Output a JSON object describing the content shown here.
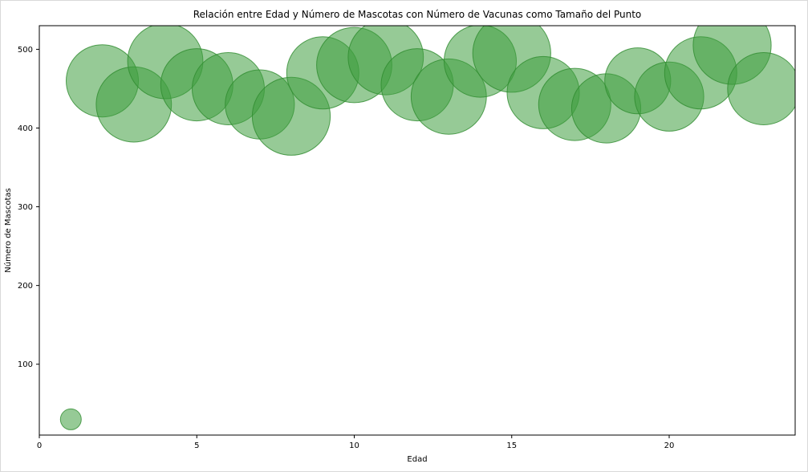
{
  "chart_data": {
    "type": "scatter",
    "title": "Relación entre Edad y Número de Mascotas con Número de Vacunas como Tamaño del Punto",
    "xlabel": "Edad",
    "ylabel": "Número de Mascotas",
    "xlim": [
      0,
      24
    ],
    "ylim": [
      10,
      530
    ],
    "x_ticks": [
      0,
      5,
      10,
      15,
      20
    ],
    "y_ticks": [
      100,
      200,
      300,
      400,
      500
    ],
    "grid": false,
    "legend": "none",
    "series_name": "mascotas-vs-edad",
    "points": [
      {
        "edad": 1,
        "mascotas": 30,
        "vacunas": 1
      },
      {
        "edad": 2,
        "mascotas": 460,
        "vacunas": 12
      },
      {
        "edad": 3,
        "mascotas": 430,
        "vacunas": 13
      },
      {
        "edad": 4,
        "mascotas": 485,
        "vacunas": 13
      },
      {
        "edad": 5,
        "mascotas": 455,
        "vacunas": 12
      },
      {
        "edad": 6,
        "mascotas": 450,
        "vacunas": 12
      },
      {
        "edad": 7,
        "mascotas": 430,
        "vacunas": 11
      },
      {
        "edad": 8,
        "mascotas": 415,
        "vacunas": 14
      },
      {
        "edad": 9,
        "mascotas": 470,
        "vacunas": 12
      },
      {
        "edad": 10,
        "mascotas": 480,
        "vacunas": 13
      },
      {
        "edad": 11,
        "mascotas": 490,
        "vacunas": 13
      },
      {
        "edad": 12,
        "mascotas": 455,
        "vacunas": 12
      },
      {
        "edad": 13,
        "mascotas": 440,
        "vacunas": 13
      },
      {
        "edad": 14,
        "mascotas": 485,
        "vacunas": 12
      },
      {
        "edad": 15,
        "mascotas": 495,
        "vacunas": 14
      },
      {
        "edad": 16,
        "mascotas": 445,
        "vacunas": 12
      },
      {
        "edad": 17,
        "mascotas": 430,
        "vacunas": 12
      },
      {
        "edad": 18,
        "mascotas": 425,
        "vacunas": 11
      },
      {
        "edad": 19,
        "mascotas": 460,
        "vacunas": 10
      },
      {
        "edad": 20,
        "mascotas": 440,
        "vacunas": 11
      },
      {
        "edad": 21,
        "mascotas": 470,
        "vacunas": 12
      },
      {
        "edad": 22,
        "mascotas": 505,
        "vacunas": 14
      },
      {
        "edad": 23,
        "mascotas": 450,
        "vacunas": 12
      }
    ],
    "colors": {
      "bubble_fill": "#3f9e3f",
      "bubble_fill_opacity": 0.55,
      "bubble_edge": "#2e8b2e",
      "bubble_edge_opacity": 0.8,
      "axis": "#000000",
      "background": "#ffffff"
    }
  }
}
